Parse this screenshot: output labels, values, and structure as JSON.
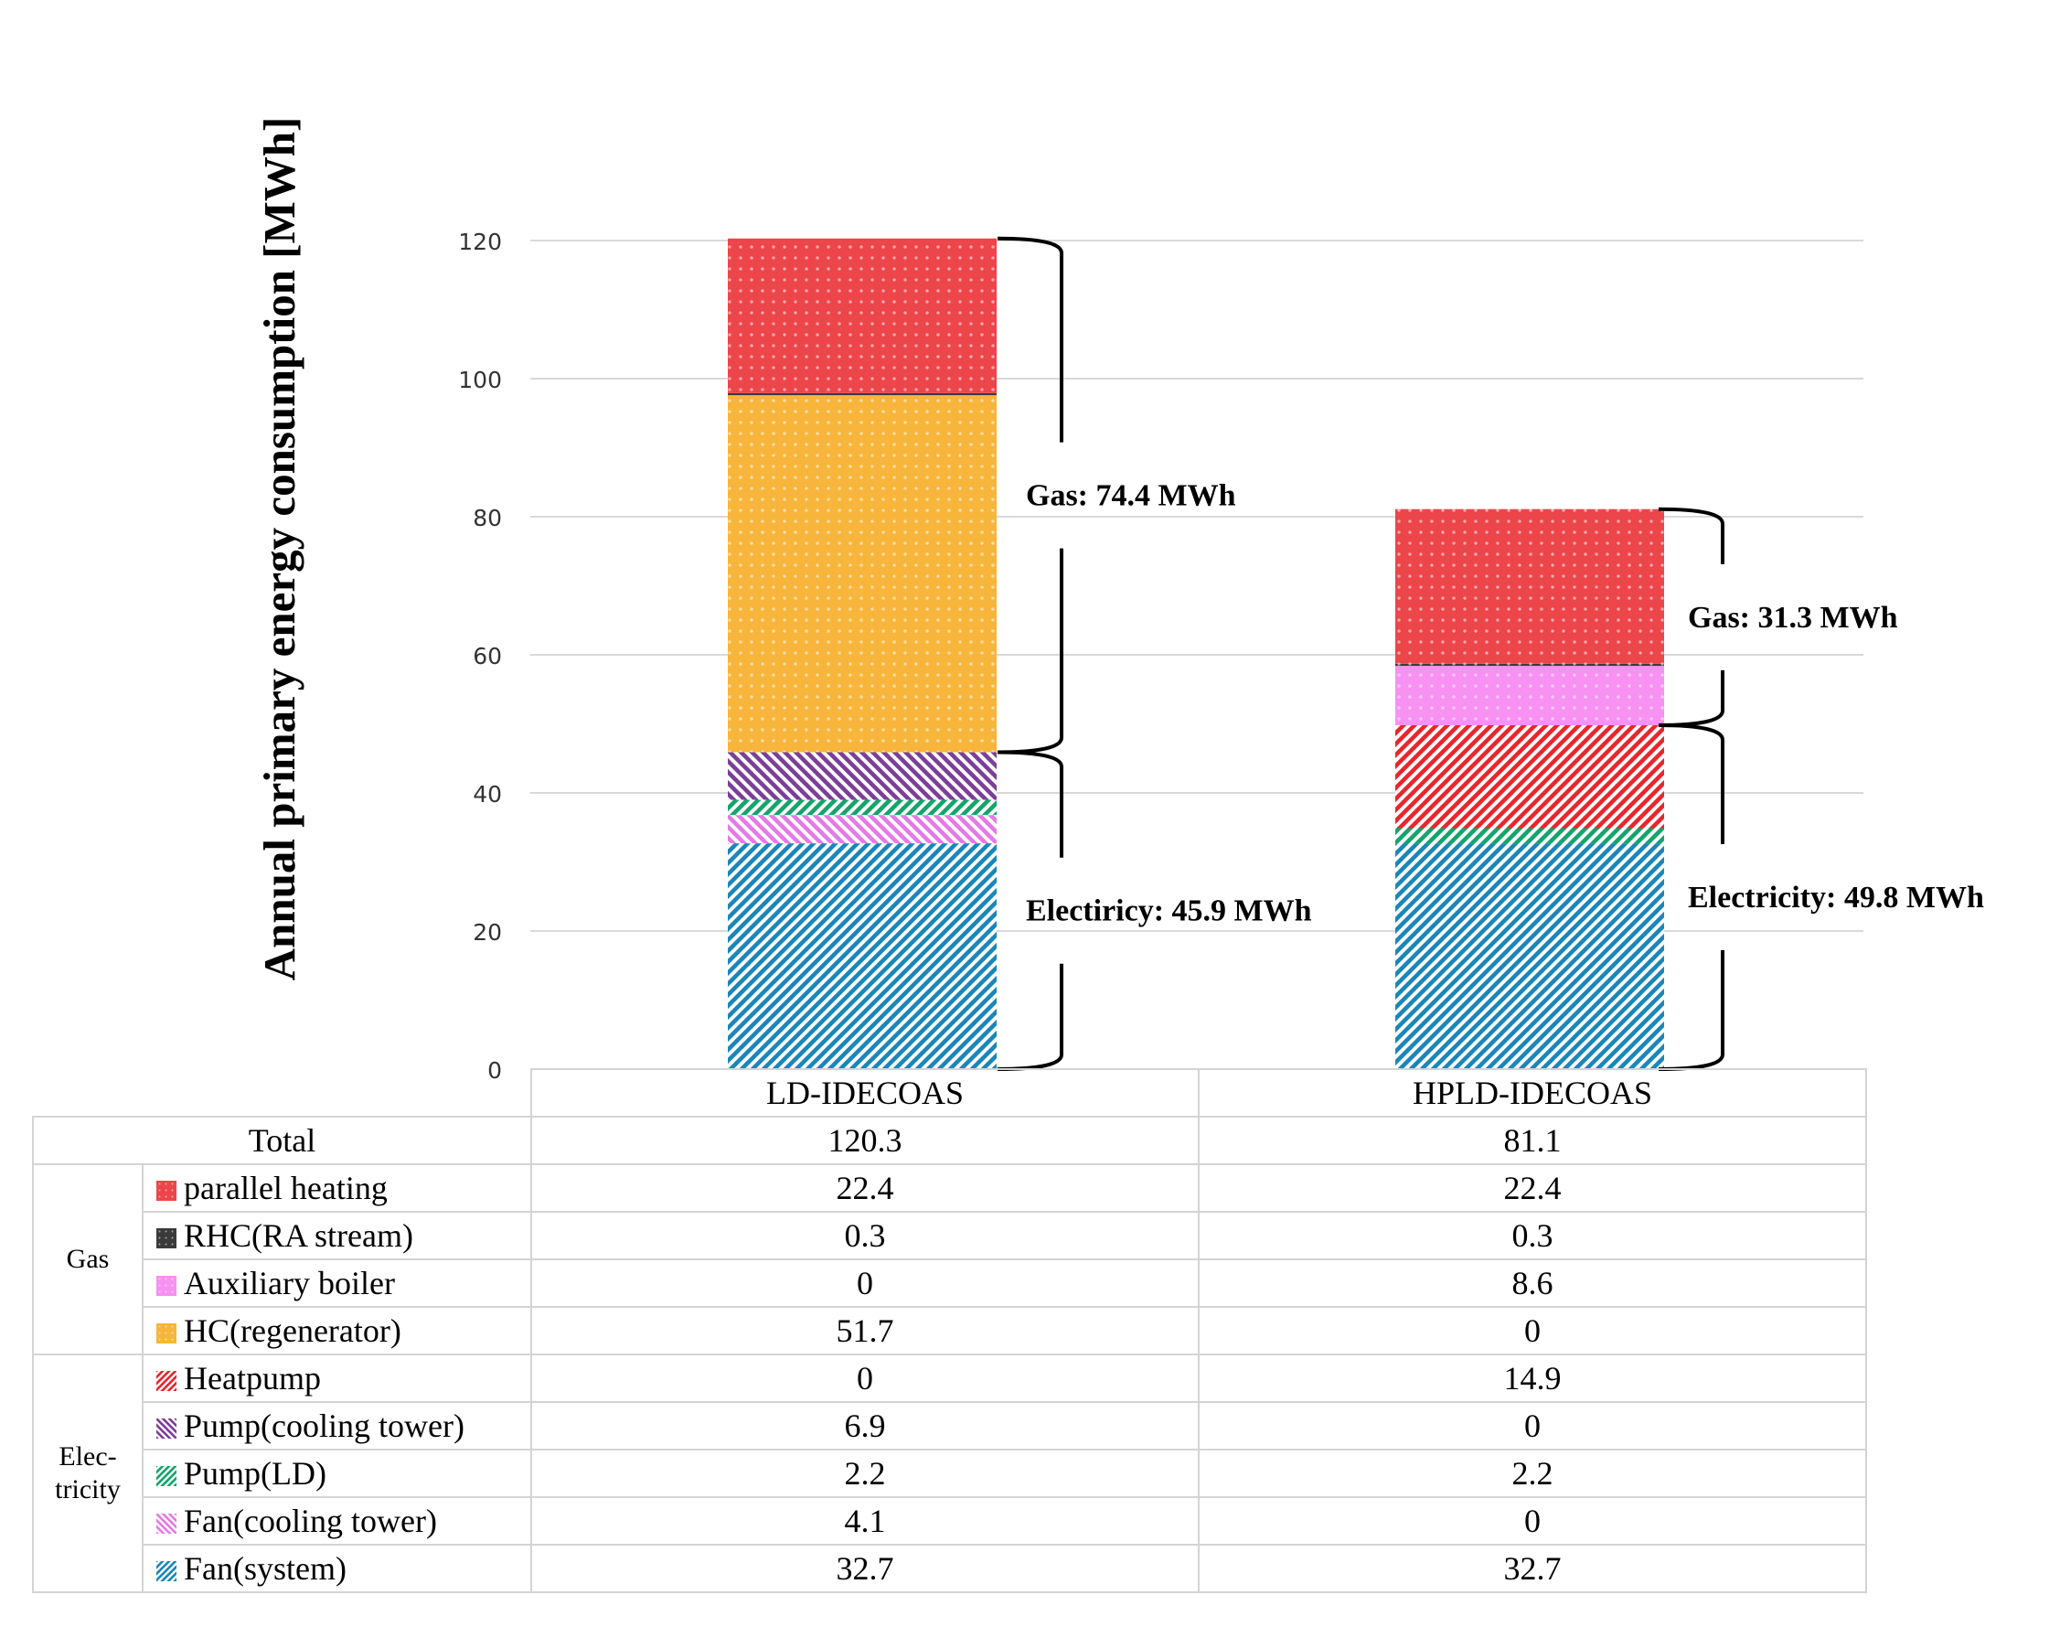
{
  "chart_data": {
    "type": "bar",
    "stacked": true,
    "ylabel": "Annual primary energy consumption [MWh]",
    "ylim": [
      0,
      120
    ],
    "yticks": [
      0,
      20,
      40,
      60,
      80,
      100,
      120
    ],
    "categories": [
      "LD-IDECOAS",
      "HPLD-IDECOAS"
    ],
    "totals_label": "Total",
    "totals": [
      "120.3",
      "81.1"
    ],
    "groups": [
      {
        "name": "Gas",
        "lines": [
          "Gas"
        ]
      },
      {
        "name": "Electricity",
        "lines": [
          "Elec-",
          "tricity"
        ]
      }
    ],
    "series": [
      {
        "name": "parallel heating",
        "group": "Gas",
        "color": "#e8262c",
        "pattern": "dots",
        "values": [
          22.4,
          22.4
        ],
        "labels": [
          "22.4",
          "22.4"
        ]
      },
      {
        "name": "RHC(RA stream)",
        "group": "Gas",
        "color": "#1a1a1a",
        "pattern": "dots",
        "values": [
          0.3,
          0.3
        ],
        "labels": [
          "0.3",
          "0.3"
        ]
      },
      {
        "name": "Auxiliary boiler",
        "group": "Gas",
        "color": "#f57fef",
        "pattern": "dots",
        "values": [
          0,
          8.6
        ],
        "labels": [
          "0",
          "8.6"
        ]
      },
      {
        "name": "HC(regenerator)",
        "group": "Gas",
        "color": "#f5a91c",
        "pattern": "dots",
        "values": [
          51.7,
          0
        ],
        "labels": [
          "51.7",
          "0"
        ]
      },
      {
        "name": "Heatpump",
        "group": "Electricity",
        "color": "#e8262c",
        "pattern": "diag",
        "values": [
          0,
          14.9
        ],
        "labels": [
          "0",
          "14.9"
        ]
      },
      {
        "name": "Pump(cooling tower)",
        "group": "Electricity",
        "color": "#7b3f98",
        "pattern": "rdiag",
        "values": [
          6.9,
          0
        ],
        "labels": [
          "6.9",
          "0"
        ]
      },
      {
        "name": "Pump(LD)",
        "group": "Electricity",
        "color": "#13a56b",
        "pattern": "diag",
        "values": [
          2.2,
          2.2
        ],
        "labels": [
          "2.2",
          "2.2"
        ]
      },
      {
        "name": "Fan(cooling tower)",
        "group": "Electricity",
        "color": "#e47ae6",
        "pattern": "rdiag",
        "values": [
          4.1,
          0
        ],
        "labels": [
          "4.1",
          "0"
        ]
      },
      {
        "name": "Fan(system)",
        "group": "Electricity",
        "color": "#1b86b8",
        "pattern": "diag",
        "values": [
          32.7,
          32.7
        ],
        "labels": [
          "32.7",
          "32.7"
        ]
      }
    ],
    "annotations": [
      {
        "bar": 0,
        "from": 45.9,
        "to": 120.3,
        "text": "Gas: 74.4 MWh"
      },
      {
        "bar": 0,
        "from": 0,
        "to": 45.9,
        "text": "Electiricy: 45.9 MWh"
      },
      {
        "bar": 1,
        "from": 49.8,
        "to": 81.1,
        "text": "Gas: 31.3 MWh"
      },
      {
        "bar": 1,
        "from": 0,
        "to": 49.8,
        "text": "Electricity: 49.8 MWh"
      }
    ]
  }
}
